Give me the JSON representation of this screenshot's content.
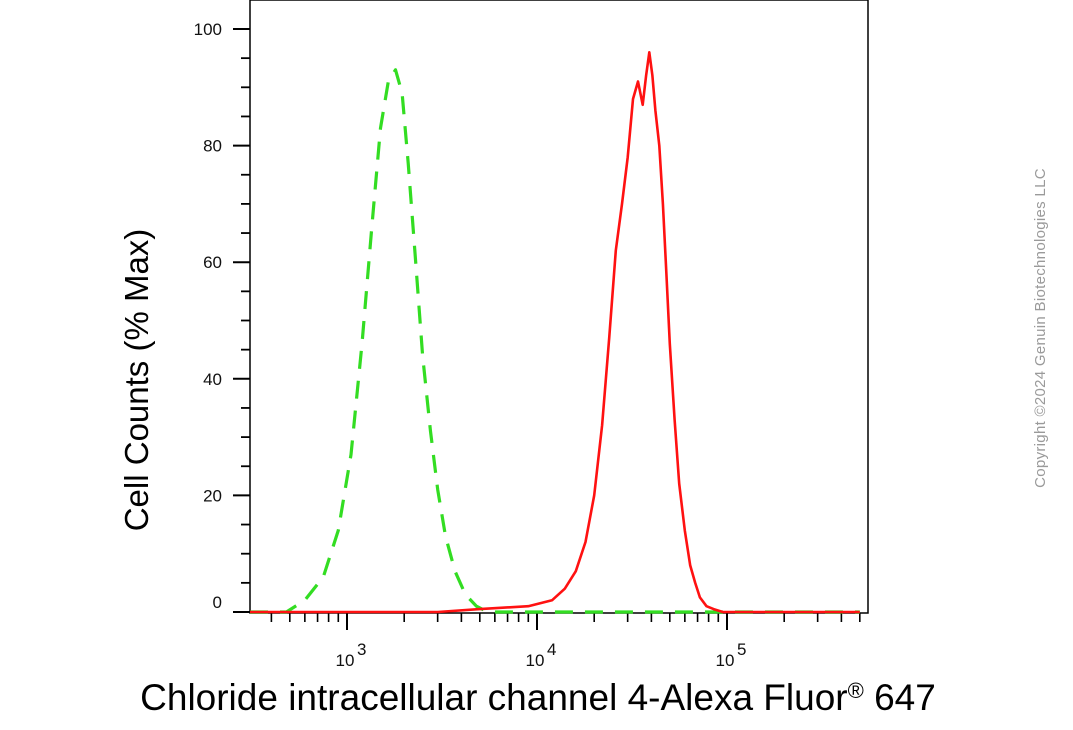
{
  "chart_data": {
    "type": "line",
    "xlabel": "Chloride intracellular channel 4-Alexa Fluor® 647",
    "ylabel": "Cell Counts (% Max)",
    "x_scale": "log",
    "xlim": [
      250,
      500000
    ],
    "ylim": [
      0,
      105
    ],
    "y_ticks": [
      "0",
      "20",
      "40",
      "60",
      "80",
      "100"
    ],
    "x_ticks": [
      {
        "base": "10",
        "exp": "3",
        "value": 1000
      },
      {
        "base": "10",
        "exp": "4",
        "value": 10000
      },
      {
        "base": "10",
        "exp": "5",
        "value": 100000
      }
    ],
    "grid": false,
    "legend": "none",
    "series": [
      {
        "color": "#33dd22",
        "line_style": "dashed",
        "x": [
          250,
          350,
          480,
          600,
          750,
          900,
          1050,
          1200,
          1350,
          1500,
          1650,
          1800,
          1950,
          2100,
          2300,
          2500,
          2750,
          3000,
          3300,
          3700,
          4200,
          4800,
          5500,
          6500,
          8000,
          10000,
          20000,
          50000,
          100000,
          500000
        ],
        "y": [
          0,
          0,
          0,
          2,
          6,
          14,
          27,
          46,
          66,
          83,
          91,
          93,
          89,
          77,
          60,
          44,
          31,
          21,
          13,
          7,
          3,
          1,
          0,
          0,
          0,
          0,
          0,
          0,
          0,
          0
        ]
      },
      {
        "color": "#ff1111",
        "line_style": "solid",
        "x": [
          250,
          1000,
          3000,
          5000,
          9000,
          12000,
          14000,
          16000,
          18000,
          20000,
          22000,
          24000,
          26000,
          28000,
          30000,
          32000,
          34000,
          36000,
          37500,
          39000,
          40500,
          42000,
          44000,
          46000,
          48000,
          50000,
          53000,
          56000,
          60000,
          64000,
          68000,
          72000,
          78000,
          85000,
          95000,
          110000,
          140000,
          200000,
          500000
        ],
        "y": [
          0,
          0,
          0,
          0.5,
          1,
          2,
          4,
          7,
          12,
          20,
          32,
          47,
          62,
          70,
          78,
          88,
          91,
          87,
          92,
          96,
          92,
          86,
          80,
          70,
          58,
          46,
          33,
          22,
          14,
          8,
          5,
          2.5,
          1,
          0.5,
          0,
          0,
          0,
          0,
          0
        ]
      }
    ]
  },
  "watermark": {
    "text": "Copyright ©2024 Genuin Biotechnologies LLC"
  }
}
